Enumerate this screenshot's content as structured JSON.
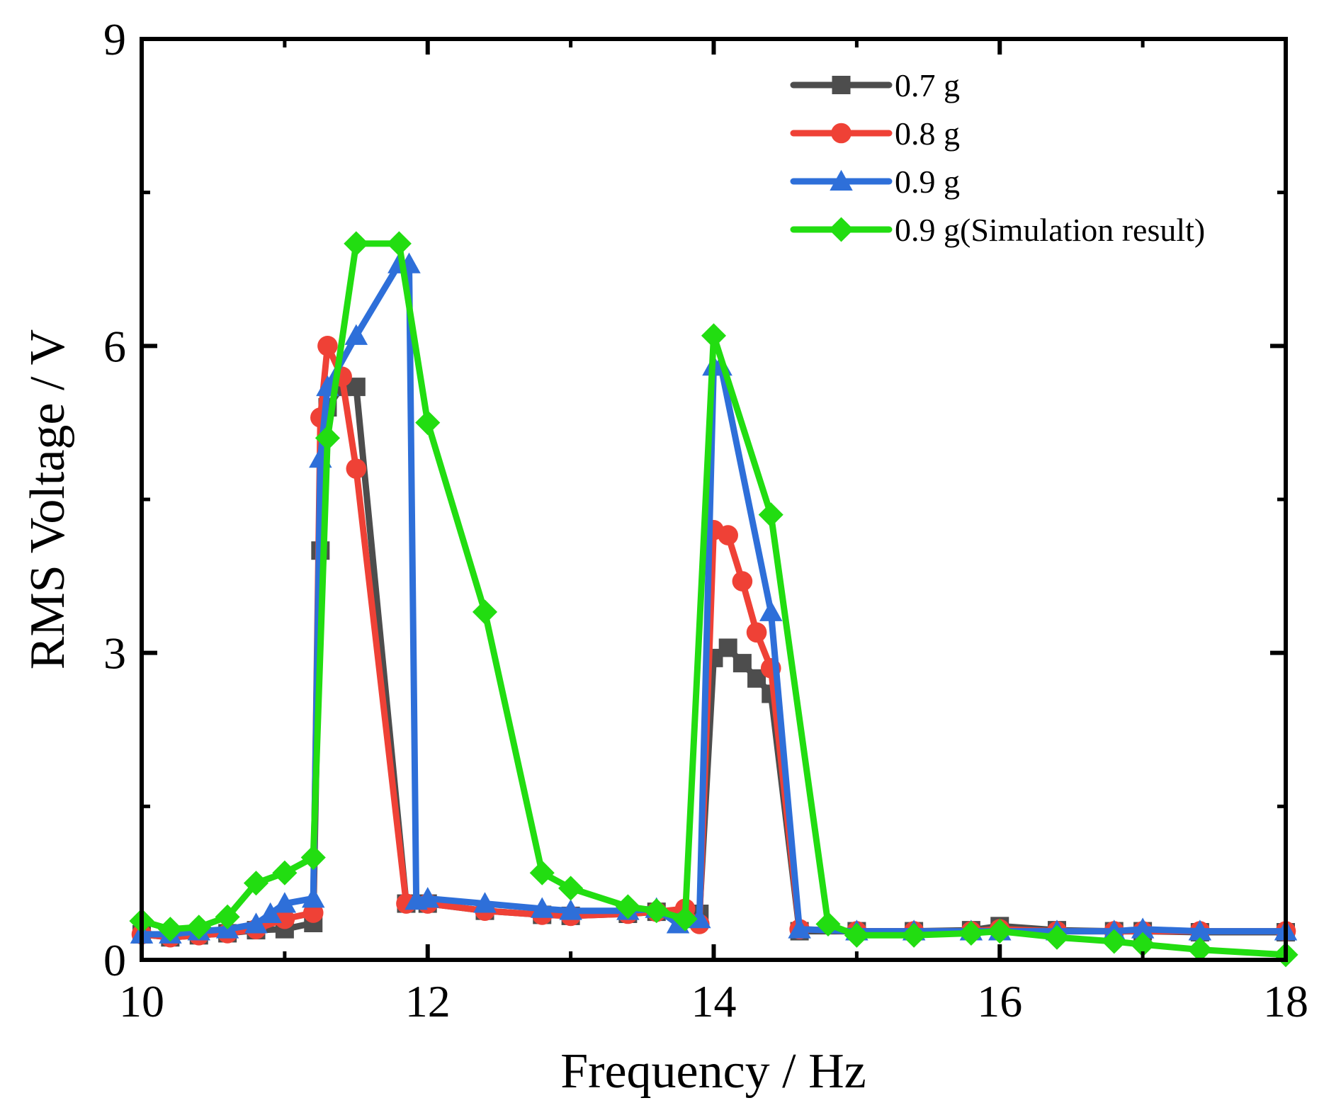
{
  "chart_data": {
    "type": "line",
    "title": "",
    "xlabel": "Frequency / Hz",
    "ylabel": "RMS Voltage / V",
    "xlim": [
      10,
      18
    ],
    "ylim": [
      0,
      9
    ],
    "xticks": [
      10,
      12,
      14,
      16,
      18
    ],
    "yticks": [
      0,
      3,
      6,
      9
    ],
    "x_tick_labels": [
      "10",
      "12",
      "14",
      "16",
      "18"
    ],
    "y_tick_labels": [
      "0",
      "3",
      "6",
      "9"
    ],
    "legend_position": "top-right",
    "series": [
      {
        "name": "0.7 g",
        "color": "#4d4d4d",
        "marker": "square",
        "x": [
          10,
          10.2,
          10.4,
          10.6,
          10.8,
          11,
          11.2,
          11.25,
          11.3,
          11.4,
          11.5,
          11.85,
          12,
          12.4,
          12.8,
          13,
          13.4,
          13.6,
          13.8,
          13.9,
          14.0,
          14.1,
          14.2,
          14.3,
          14.4,
          14.6,
          15,
          15.4,
          15.8,
          16,
          16.4,
          16.8,
          17,
          17.4,
          18
        ],
        "y": [
          0.25,
          0.22,
          0.24,
          0.26,
          0.29,
          0.3,
          0.36,
          4.0,
          5.4,
          5.6,
          5.6,
          0.55,
          0.55,
          0.48,
          0.44,
          0.43,
          0.45,
          0.47,
          0.45,
          0.45,
          2.95,
          3.05,
          2.9,
          2.75,
          2.6,
          0.28,
          0.28,
          0.28,
          0.29,
          0.33,
          0.29,
          0.28,
          0.28,
          0.27,
          0.27
        ]
      },
      {
        "name": "0.8 g",
        "color": "#ef4136",
        "marker": "circle",
        "x": [
          10,
          10.2,
          10.4,
          10.6,
          10.8,
          11,
          11.2,
          11.25,
          11.3,
          11.4,
          11.5,
          11.85,
          12,
          12.4,
          12.8,
          13,
          13.4,
          13.6,
          13.8,
          13.9,
          14.0,
          14.1,
          14.2,
          14.3,
          14.4,
          14.6,
          15,
          15.4,
          15.8,
          16,
          16.4,
          16.8,
          17,
          17.4,
          18
        ],
        "y": [
          0.25,
          0.22,
          0.24,
          0.26,
          0.3,
          0.4,
          0.46,
          5.3,
          6.0,
          5.7,
          4.8,
          0.55,
          0.55,
          0.48,
          0.44,
          0.43,
          0.45,
          0.47,
          0.5,
          0.35,
          4.2,
          4.15,
          3.7,
          3.2,
          2.85,
          0.3,
          0.28,
          0.28,
          0.28,
          0.3,
          0.28,
          0.28,
          0.28,
          0.28,
          0.28
        ]
      },
      {
        "name": "0.9 g",
        "color": "#2e6fd9",
        "marker": "triangle",
        "x": [
          10,
          10.2,
          10.4,
          10.6,
          10.8,
          10.9,
          11,
          11.2,
          11.25,
          11.3,
          11.5,
          11.8,
          11.87,
          11.92,
          12,
          12.4,
          12.8,
          13,
          13.4,
          13.6,
          13.75,
          13.9,
          14.0,
          14.05,
          14.4,
          14.6,
          15,
          15.4,
          15.8,
          16,
          16.4,
          16.8,
          17,
          17.4,
          18
        ],
        "y": [
          0.25,
          0.25,
          0.28,
          0.3,
          0.35,
          0.45,
          0.55,
          0.6,
          4.9,
          5.6,
          6.1,
          6.8,
          6.8,
          0.58,
          0.6,
          0.55,
          0.5,
          0.48,
          0.48,
          0.5,
          0.35,
          0.4,
          5.8,
          5.8,
          3.4,
          0.3,
          0.28,
          0.28,
          0.28,
          0.28,
          0.28,
          0.28,
          0.3,
          0.28,
          0.28
        ]
      },
      {
        "name": "0.9 g(Simulation result)",
        "color": "#22dd11",
        "marker": "diamond",
        "x": [
          10,
          10.2,
          10.4,
          10.6,
          10.8,
          11,
          11.2,
          11.3,
          11.5,
          11.8,
          12,
          12.4,
          12.8,
          13,
          13.4,
          13.6,
          13.8,
          14.0,
          14.4,
          14.8,
          15,
          15.4,
          15.8,
          16,
          16.4,
          16.8,
          17,
          17.4,
          18
        ],
        "y": [
          0.38,
          0.3,
          0.32,
          0.42,
          0.75,
          0.85,
          1.0,
          5.1,
          7.0,
          7.0,
          5.25,
          3.4,
          0.85,
          0.7,
          0.52,
          0.48,
          0.4,
          6.1,
          4.35,
          0.35,
          0.24,
          0.24,
          0.26,
          0.28,
          0.22,
          0.18,
          0.15,
          0.1,
          0.05
        ]
      }
    ]
  }
}
